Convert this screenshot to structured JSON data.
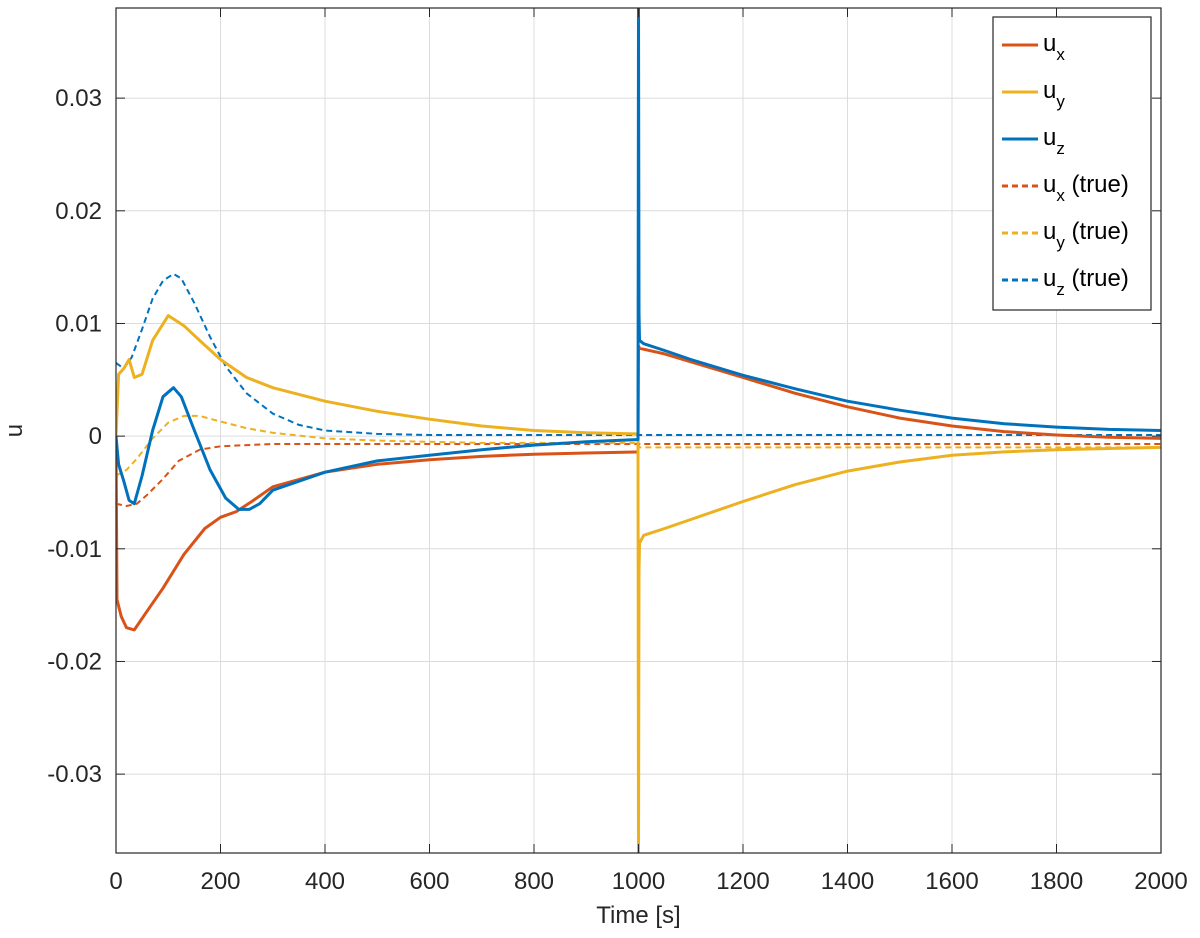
{
  "chart_data": {
    "type": "line",
    "xlabel": "Time [s]",
    "ylabel": "u",
    "xlim": [
      0,
      2000
    ],
    "ylim": [
      -0.037,
      0.038
    ],
    "grid": true,
    "legend_placement": "top-right",
    "xticks": [
      0,
      200,
      400,
      600,
      800,
      1000,
      1200,
      1400,
      1600,
      1800,
      2000
    ],
    "xtick_labels": [
      "0",
      "200",
      "400",
      "600",
      "800",
      "1000",
      "1200",
      "1400",
      "1600",
      "1800",
      "2000"
    ],
    "yticks": [
      -0.03,
      -0.02,
      -0.01,
      0,
      0.01,
      0.02,
      0.03
    ],
    "ytick_labels": [
      "-0.03",
      "-0.02",
      "-0.01",
      "0",
      "0.01",
      "0.02",
      "0.03"
    ],
    "series": [
      {
        "name": "u_x",
        "legend_base": "u",
        "legend_sub": "x",
        "legend_suffix": "",
        "color": "#D95319",
        "style": "solid",
        "width": 3,
        "x": [
          0,
          2,
          10,
          20,
          35,
          60,
          90,
          130,
          170,
          200,
          230,
          260,
          300,
          400,
          500,
          600,
          700,
          800,
          900,
          999,
          1000,
          1002,
          1050,
          1100,
          1200,
          1300,
          1400,
          1500,
          1600,
          1700,
          1800,
          1900,
          2000
        ],
        "y": [
          0,
          -0.0145,
          -0.016,
          -0.017,
          -0.0172,
          -0.0155,
          -0.0135,
          -0.0105,
          -0.0082,
          -0.0072,
          -0.0067,
          -0.0058,
          -0.0045,
          -0.0032,
          -0.0025,
          -0.0021,
          -0.0018,
          -0.0016,
          -0.0015,
          -0.0014,
          0.008,
          0.0078,
          0.0073,
          0.0066,
          0.0052,
          0.0038,
          0.0026,
          0.0016,
          0.0009,
          0.0004,
          0.0001,
          -0.0001,
          -0.0002
        ]
      },
      {
        "name": "u_y",
        "legend_base": "u",
        "legend_sub": "y",
        "legend_suffix": "",
        "color": "#EDB120",
        "style": "solid",
        "width": 3,
        "x": [
          0,
          5,
          15,
          25,
          35,
          50,
          70,
          100,
          130,
          160,
          200,
          250,
          300,
          400,
          500,
          600,
          700,
          800,
          900,
          999,
          1000,
          1001,
          1002,
          1010,
          1050,
          1100,
          1200,
          1300,
          1400,
          1500,
          1600,
          1700,
          1800,
          1900,
          2000
        ],
        "y": [
          0,
          0.0055,
          0.006,
          0.0068,
          0.0052,
          0.0055,
          0.0085,
          0.0107,
          0.0098,
          0.0085,
          0.0068,
          0.0052,
          0.0043,
          0.0031,
          0.0022,
          0.0015,
          0.0009,
          0.0005,
          0.0003,
          0.0002,
          -0.037,
          -0.012,
          -0.0095,
          -0.0088,
          -0.0082,
          -0.0074,
          -0.0058,
          -0.0043,
          -0.0031,
          -0.0023,
          -0.0017,
          -0.0014,
          -0.0012,
          -0.0011,
          -0.001
        ]
      },
      {
        "name": "u_z",
        "legend_base": "u",
        "legend_sub": "z",
        "legend_suffix": "",
        "color": "#0072BD",
        "style": "solid",
        "width": 3,
        "x": [
          0,
          5,
          15,
          25,
          35,
          50,
          70,
          90,
          110,
          125,
          150,
          180,
          210,
          235,
          255,
          275,
          300,
          400,
          500,
          600,
          700,
          800,
          900,
          999,
          1000,
          1001,
          1002,
          1010,
          1050,
          1100,
          1200,
          1300,
          1400,
          1500,
          1600,
          1700,
          1800,
          1900,
          2000
        ],
        "y": [
          0,
          -0.0025,
          -0.004,
          -0.0057,
          -0.006,
          -0.0035,
          0.0005,
          0.0035,
          0.0043,
          0.0035,
          0.0005,
          -0.003,
          -0.0055,
          -0.0065,
          -0.0065,
          -0.006,
          -0.0048,
          -0.0032,
          -0.0022,
          -0.0017,
          -0.0012,
          -0.0008,
          -0.0005,
          -0.0003,
          0.038,
          0.011,
          0.0085,
          0.0082,
          0.0076,
          0.0068,
          0.0054,
          0.0042,
          0.0031,
          0.0023,
          0.0016,
          0.0011,
          0.0008,
          0.0006,
          0.0005
        ]
      },
      {
        "name": "u_x (true)",
        "legend_base": "u",
        "legend_sub": "x",
        "legend_suffix": " (true)",
        "color": "#D95319",
        "style": "dashed",
        "width": 2,
        "x": [
          0,
          20,
          40,
          60,
          90,
          120,
          160,
          200,
          250,
          300,
          400,
          500,
          700,
          1000,
          1001,
          1500,
          2000
        ],
        "y": [
          -0.006,
          -0.0062,
          -0.006,
          -0.0052,
          -0.0038,
          -0.0022,
          -0.0012,
          -0.0009,
          -0.0008,
          -0.0007,
          -0.0007,
          -0.0007,
          -0.0007,
          -0.0007,
          -0.0007,
          -0.0007,
          -0.0007
        ]
      },
      {
        "name": "u_y (true)",
        "legend_base": "u",
        "legend_sub": "y",
        "legend_suffix": " (true)",
        "color": "#EDB120",
        "style": "dashed",
        "width": 2,
        "x": [
          0,
          20,
          40,
          70,
          100,
          130,
          160,
          200,
          250,
          300,
          400,
          500,
          600,
          700,
          800,
          900,
          1000,
          1001,
          1500,
          2000
        ],
        "y": [
          -0.0035,
          -0.003,
          -0.002,
          -0.0002,
          0.0012,
          0.0018,
          0.0018,
          0.0013,
          0.0007,
          0.0003,
          -0.0002,
          -0.0004,
          -0.0005,
          -0.0006,
          -0.0006,
          -0.0006,
          -0.0006,
          -0.001,
          -0.001,
          -0.001
        ]
      },
      {
        "name": "u_z (true)",
        "legend_base": "u",
        "legend_sub": "z",
        "legend_suffix": " (true)",
        "color": "#0072BD",
        "style": "dashed",
        "width": 2,
        "x": [
          0,
          15,
          30,
          50,
          70,
          90,
          110,
          125,
          150,
          180,
          210,
          250,
          300,
          350,
          400,
          500,
          600,
          800,
          1000,
          1500,
          2000
        ],
        "y": [
          0.0065,
          0.006,
          0.007,
          0.0095,
          0.0122,
          0.0138,
          0.0144,
          0.014,
          0.0118,
          0.0088,
          0.0062,
          0.0038,
          0.002,
          0.001,
          0.0005,
          0.0002,
          0.0001,
          0.0001,
          0.0001,
          0.0001,
          0.0001
        ]
      }
    ]
  }
}
